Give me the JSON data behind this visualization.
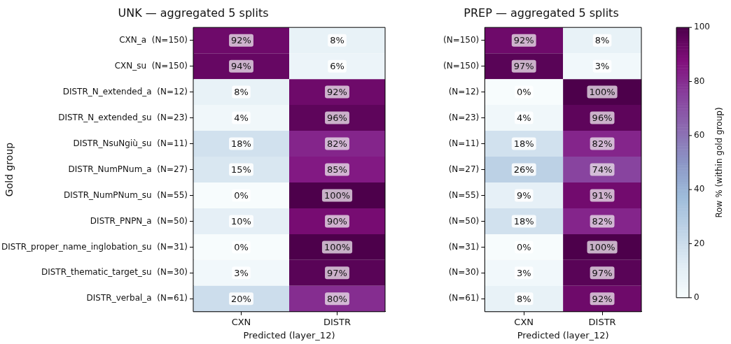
{
  "chart_data": [
    {
      "type": "heatmap",
      "title": "UNK — aggregated 5 splits",
      "xlabel": "Predicted (layer_12)",
      "ylabel": "Gold group",
      "categories": [
        "CXN",
        "DISTR"
      ],
      "y_categories": [
        "CXN_a  (N=150)",
        "CXN_su  (N=150)",
        "DISTR_N_extended_a  (N=12)",
        "DISTR_N_extended_su  (N=23)",
        "DISTR_NsuNgiù_su  (N=11)",
        "DISTR_NumPNum_a  (N=27)",
        "DISTR_NumPNum_su  (N=55)",
        "DISTR_PNPN_a  (N=50)",
        "DISTR_proper_name_inglobation_su  (N=31)",
        "DISTR_thematic_target_su  (N=30)",
        "DISTR_verbal_a  (N=61)"
      ],
      "cells": [
        [
          92,
          8
        ],
        [
          94,
          6
        ],
        [
          8,
          92
        ],
        [
          4,
          96
        ],
        [
          18,
          82
        ],
        [
          15,
          85
        ],
        [
          0,
          100
        ],
        [
          10,
          90
        ],
        [
          0,
          100
        ],
        [
          3,
          97
        ],
        [
          20,
          80
        ]
      ],
      "cell_labels": [
        [
          "92%",
          "8%"
        ],
        [
          "94%",
          "6%"
        ],
        [
          "8%",
          "92%"
        ],
        [
          "4%",
          "96%"
        ],
        [
          "18%",
          "82%"
        ],
        [
          "15%",
          "85%"
        ],
        [
          "0%",
          "100%"
        ],
        [
          "10%",
          "90%"
        ],
        [
          "0%",
          "100%"
        ],
        [
          "3%",
          "97%"
        ],
        [
          "20%",
          "80%"
        ]
      ]
    },
    {
      "type": "heatmap",
      "title": "PREP — aggregated 5 splits",
      "xlabel": "Predicted (layer_12)",
      "clabel": "Row % (within gold group)",
      "categories": [
        "CXN",
        "DISTR"
      ],
      "y_categories": [
        "(N=150)",
        "(N=150)",
        "(N=12)",
        "(N=23)",
        "(N=11)",
        "(N=27)",
        "(N=55)",
        "(N=50)",
        "(N=31)",
        "(N=30)",
        "(N=61)"
      ],
      "cells": [
        [
          92,
          8
        ],
        [
          97,
          3
        ],
        [
          0,
          100
        ],
        [
          4,
          96
        ],
        [
          18,
          82
        ],
        [
          26,
          74
        ],
        [
          9,
          91
        ],
        [
          18,
          82
        ],
        [
          0,
          100
        ],
        [
          3,
          97
        ],
        [
          8,
          92
        ]
      ],
      "cell_labels": [
        [
          "92%",
          "8%"
        ],
        [
          "97%",
          "3%"
        ],
        [
          "0%",
          "100%"
        ],
        [
          "4%",
          "96%"
        ],
        [
          "18%",
          "82%"
        ],
        [
          "26%",
          "74%"
        ],
        [
          "9%",
          "91%"
        ],
        [
          "18%",
          "82%"
        ],
        [
          "0%",
          "100%"
        ],
        [
          "3%",
          "97%"
        ],
        [
          "8%",
          "92%"
        ]
      ],
      "clim": [
        0,
        100
      ],
      "cticks": [
        0,
        20,
        40,
        60,
        80,
        100
      ]
    }
  ]
}
